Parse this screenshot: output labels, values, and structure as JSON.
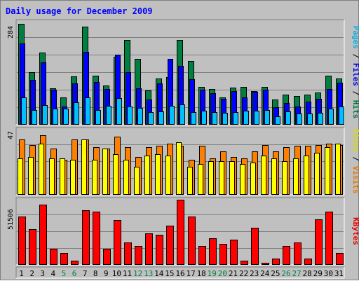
{
  "chart_data": {
    "type": "bar",
    "title": "Daily usage for December 2009",
    "categories": [
      "1",
      "2",
      "3",
      "4",
      "5",
      "6",
      "7",
      "8",
      "9",
      "10",
      "11",
      "12",
      "13",
      "14",
      "15",
      "16",
      "17",
      "18",
      "19",
      "20",
      "21",
      "22",
      "23",
      "24",
      "25",
      "26",
      "27",
      "28",
      "29",
      "30",
      "31"
    ],
    "weekend_days": [
      "5",
      "6",
      "12",
      "13",
      "19",
      "20",
      "26",
      "27"
    ],
    "panels": [
      {
        "id": "hits-files-pages",
        "max_label": "284",
        "ylim": [
          0,
          284
        ],
        "grid": true,
        "legend_right": [
          "Pages",
          "Files",
          "Hits"
        ],
        "series": [
          {
            "name": "Hits",
            "color": "#008040",
            "values": [
              278,
              143,
              198,
              99,
              73,
              133,
              271,
              134,
              107,
              187,
              234,
              180,
              93,
              126,
              131,
              234,
              175,
              104,
              98,
              73,
              102,
              104,
              92,
              104,
              69,
              82,
              77,
              82,
              87,
              135,
              127
            ]
          },
          {
            "name": "Files",
            "color": "#0000ff",
            "values": [
              224,
              122,
              171,
              96,
              48,
              113,
              200,
              117,
              98,
              193,
              143,
              100,
              68,
              113,
              181,
              161,
              125,
              95,
              86,
              71,
              91,
              74,
              90,
              96,
              46,
              58,
              48,
              63,
              70,
              98,
              114
            ]
          },
          {
            "name": "Pages",
            "color": "#00c0ff",
            "values": [
              73,
              38,
              53,
              42,
              43,
              61,
              74,
              39,
              50,
              72,
              49,
              44,
              34,
              35,
              50,
              54,
              34,
              36,
              34,
              32,
              34,
              37,
              37,
              39,
              22,
              35,
              29,
              29,
              31,
              43,
              48
            ]
          }
        ]
      },
      {
        "id": "visits-sites",
        "max_label": "47",
        "ylim": [
          0,
          47
        ],
        "grid": true,
        "legend_right": [
          "Sites",
          "Visits"
        ],
        "series": [
          {
            "name": "Visits",
            "color": "#ff8000",
            "values": [
              40,
              36,
              43,
              33,
              25,
              40,
              40,
              34,
              33,
              42,
              34,
              27,
              34,
              35,
              37,
              35,
              25,
              35,
              26,
              31,
              27,
              26,
              31,
              36,
              31,
              34,
              35,
              35,
              36,
              37,
              36
            ]
          },
          {
            "name": "Sites",
            "color": "#ffff00",
            "values": [
              26,
              27,
              37,
              26,
              26,
              25,
              40,
              25,
              33,
              29,
              25,
              20,
              28,
              29,
              28,
              38,
              20,
              22,
              24,
              24,
              24,
              22,
              23,
              28,
              26,
              24,
              26,
              28,
              30,
              34,
              37
            ]
          }
        ]
      },
      {
        "id": "kbytes",
        "max_label": "51506",
        "ylim": [
          0,
          51506
        ],
        "grid": true,
        "legend_right": [
          "KBytes"
        ],
        "series": [
          {
            "name": "KBytes",
            "color": "#ff0000",
            "values": [
              38000,
              27800,
              47800,
              12500,
              9200,
              3000,
              43000,
              41800,
              12500,
              35500,
              17400,
              14700,
              24700,
              23700,
              30800,
              51400,
              38000,
              14700,
              20500,
              16000,
              19400,
              3000,
              29300,
              1000,
              4500,
              14700,
              17400,
              4500,
              35600,
              42000,
              9200
            ]
          }
        ]
      }
    ]
  }
}
